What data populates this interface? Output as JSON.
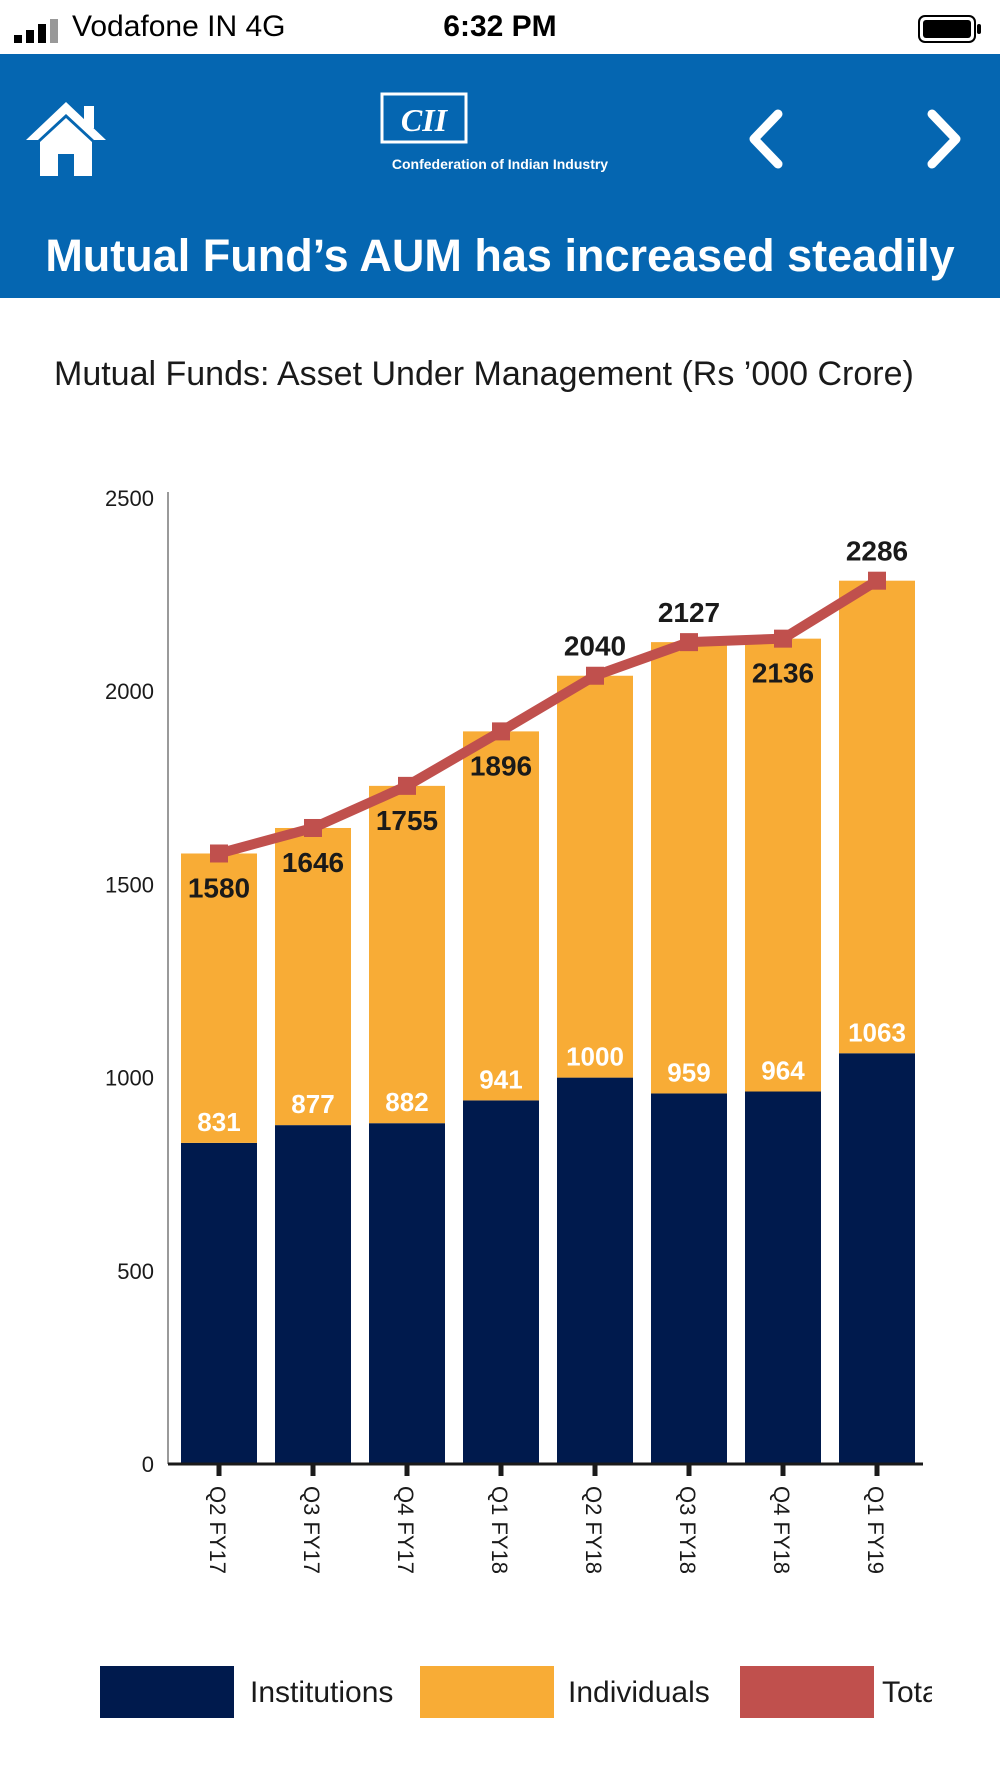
{
  "status": {
    "carrier": "Vodafone IN  4G",
    "time": "6:32 PM"
  },
  "header": {
    "logo_text": "CII",
    "org_name": "Confederation of Indian Industry",
    "title": "Mutual Fund’s AUM has increased steadily",
    "icons": [
      "home-icon",
      "chevron-left-icon",
      "chevron-right-icon"
    ]
  },
  "chart_title": "Mutual Funds: Asset Under Management (Rs ’000 Crore)",
  "legend": {
    "institutions": "Institutions",
    "individuals": "Individuals",
    "total": "Total"
  },
  "colors": {
    "header_bg": "#0566b1",
    "institutions": "#001a4d",
    "individuals": "#f8ac36",
    "total": "#c0504d"
  },
  "chart_data": {
    "type": "bar",
    "stacked": true,
    "categories": [
      "Q2 FY17",
      "Q3 FY17",
      "Q4 FY17",
      "Q1 FY18",
      "Q2 FY18",
      "Q3 FY18",
      "Q4 FY18",
      "Q1 FY19"
    ],
    "series": [
      {
        "name": "Institutions",
        "values": [
          831,
          877,
          882,
          941,
          1000,
          959,
          964,
          1063
        ]
      },
      {
        "name": "Individuals",
        "values": [
          749,
          769,
          873,
          955,
          1040,
          1168,
          1172,
          1223
        ]
      },
      {
        "name": "Total",
        "type": "line",
        "values": [
          1580,
          1646,
          1755,
          1896,
          2040,
          2127,
          2136,
          2286
        ]
      }
    ],
    "yticks": [
      0,
      500,
      1000,
      1500,
      2000,
      2500
    ],
    "ylim": [
      0,
      2500
    ],
    "grid": false,
    "legend_position": "bottom"
  }
}
